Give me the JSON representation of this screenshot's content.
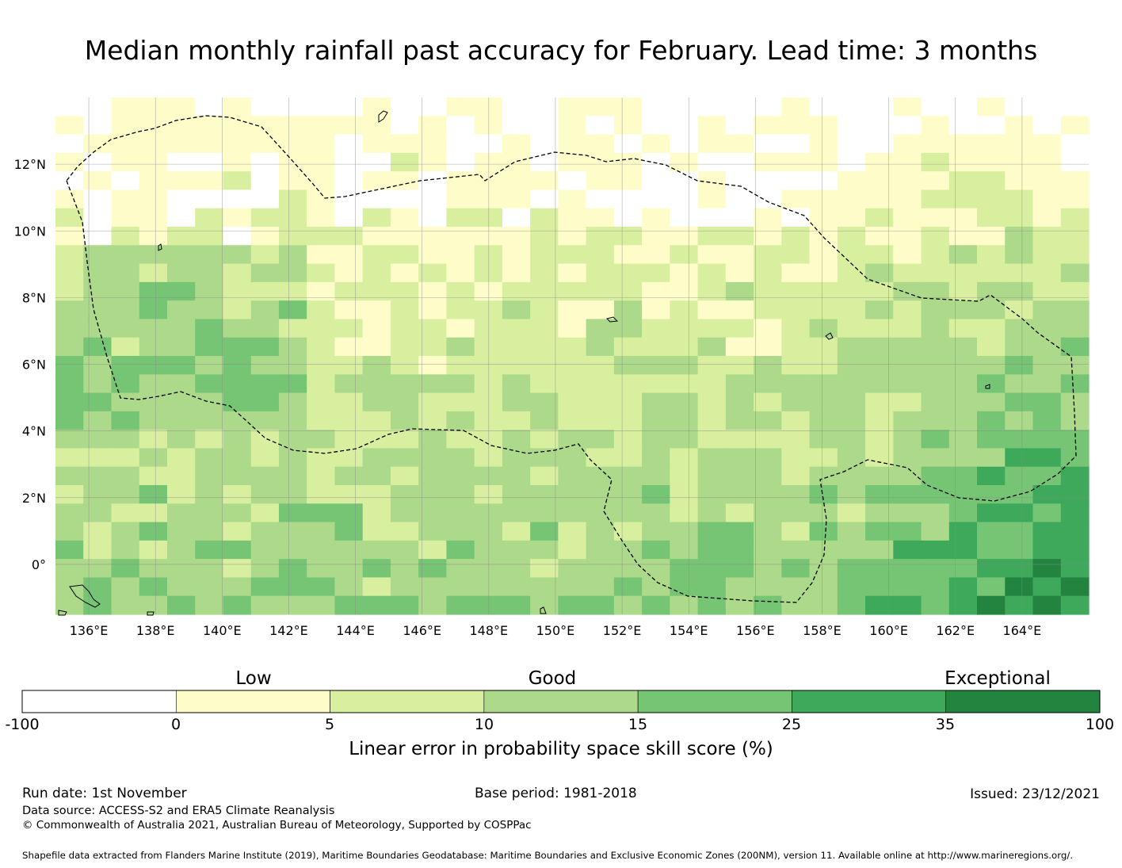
{
  "title": "Median monthly rainfall past accuracy for February. Lead time: 3 months",
  "map": {
    "lon_labels": [
      "136°E",
      "138°E",
      "140°E",
      "142°E",
      "144°E",
      "146°E",
      "148°E",
      "150°E",
      "152°E",
      "154°E",
      "156°E",
      "158°E",
      "160°E",
      "162°E",
      "164°E"
    ],
    "lat_labels": [
      "12°N",
      "10°N",
      "8°N",
      "6°N",
      "4°N",
      "2°N",
      "0°"
    ],
    "extent": {
      "lon_min": 135.0,
      "lon_max": 166.0,
      "lat_min": -1.5,
      "lat_max": 14.0
    }
  },
  "legend": {
    "categories": {
      "low": "Low",
      "good": "Good",
      "exceptional": "Exceptional"
    },
    "ticks": [
      "-100",
      "0",
      "5",
      "10",
      "15",
      "25",
      "35",
      "100"
    ],
    "colors": [
      "#ffffff",
      "#fefdca",
      "#d9efa0",
      "#add98a",
      "#76c575",
      "#3ea95a",
      "#22843f"
    ],
    "title": "Linear error in probability space skill score (%)"
  },
  "footer": {
    "run_date": "Run date: 1st November",
    "base_period": "Base period: 1981-2018",
    "issued": "Issued: 23/12/2021",
    "data_source": "Data source: ACCESS-S2 and ERA5 Climate Reanalysis",
    "copyright": "© Commonwealth of Australia 2021, Australian Bureau of Meteorology, Supported by COSPPac",
    "shapefile": "Shapefile data extracted from Flanders Marine Institute (2019), Maritime Boundaries Geodatabase: Maritime Boundaries and Exclusive Economic Zones (200NM), version 11. Available online at http://www.marineregions.org/."
  }
}
